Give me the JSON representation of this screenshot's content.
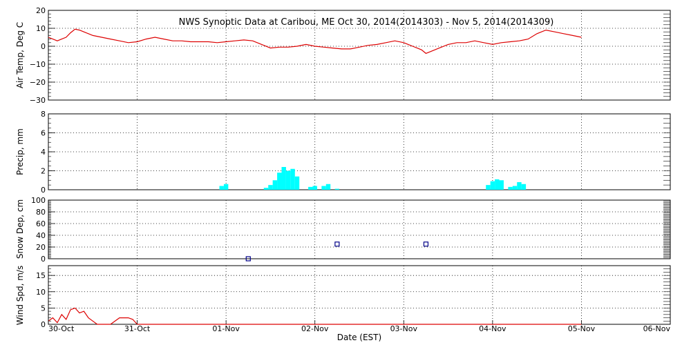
{
  "chart_data": [
    {
      "type": "line",
      "title": "NWS Synoptic Data at Caribou, ME   Oct 30, 2014(2014303) - Nov  5, 2014(2014309)",
      "ylabel": "Air Temp, Deg C",
      "ylim": [
        -30,
        20
      ],
      "yticks": [
        "20",
        "10",
        "0",
        "−10",
        "−20",
        "−30"
      ],
      "grid": true,
      "series": [
        {
          "color": "#dd0000",
          "x": [
            0,
            0.05,
            0.1,
            0.15,
            0.2,
            0.25,
            0.3,
            0.35,
            0.4,
            0.45,
            0.5,
            0.6,
            0.7,
            0.8,
            0.9,
            1.0,
            1.1,
            1.2,
            1.3,
            1.4,
            1.5,
            1.6,
            1.7,
            1.8,
            1.9,
            2.0,
            2.1,
            2.2,
            2.3,
            2.4,
            2.5,
            2.6,
            2.7,
            2.8,
            2.9,
            3.0,
            3.1,
            3.2,
            3.3,
            3.4,
            3.5,
            3.6,
            3.7,
            3.8,
            3.9,
            4.0,
            4.05,
            4.1,
            4.15,
            4.2,
            4.25,
            4.3,
            4.4,
            4.5,
            4.6,
            4.7,
            4.8,
            4.9,
            5.0,
            5.1,
            5.2,
            5.3,
            5.4,
            5.5,
            5.6,
            5.7,
            5.8,
            5.9,
            6.0
          ],
          "values": [
            5,
            4,
            3,
            4,
            5,
            7.5,
            9.5,
            9,
            8,
            7,
            6,
            5,
            4,
            3,
            2,
            2.5,
            4,
            5,
            4,
            3,
            3,
            2.5,
            2.5,
            2.5,
            2,
            2.5,
            3,
            3.5,
            3,
            1,
            -1,
            -0.5,
            -0.5,
            0,
            1,
            0,
            -0.5,
            -1,
            -1.5,
            -1.5,
            -0.5,
            0.5,
            1,
            2,
            3,
            2,
            1,
            0,
            -1,
            -2,
            -4,
            -3,
            -1,
            1,
            2,
            2,
            3,
            2,
            1,
            2,
            2.5,
            3,
            4,
            7,
            9,
            8,
            7,
            6,
            5
          ]
        }
      ]
    },
    {
      "type": "bar",
      "ylabel": "Precip, mm",
      "ylim": [
        0,
        8
      ],
      "yticks": [
        "8",
        "6",
        "4",
        "2",
        "0"
      ],
      "grid": true,
      "series": [
        {
          "color": "#00ffff",
          "x": [
            1.95,
            2.0,
            2.45,
            2.5,
            2.55,
            2.6,
            2.65,
            2.7,
            2.75,
            2.8,
            2.95,
            3.0,
            3.1,
            3.15,
            3.25,
            4.95,
            5.0,
            5.05,
            5.1,
            5.2,
            5.25,
            5.3,
            5.35
          ],
          "values": [
            0.4,
            0.6,
            0.2,
            0.5,
            1.0,
            1.8,
            2.4,
            2.0,
            2.2,
            1.4,
            0.3,
            0.4,
            0.4,
            0.6,
            0.1,
            0.5,
            0.9,
            1.1,
            1.0,
            0.3,
            0.4,
            0.8,
            0.6
          ]
        }
      ]
    },
    {
      "type": "scatter",
      "ylabel": "Snow Dep, cm",
      "ylim": [
        0,
        100
      ],
      "yticks": [
        "100",
        "80",
        "60",
        "40",
        "20",
        "0"
      ],
      "grid": true,
      "series": [
        {
          "color": "#000088",
          "x": [
            2.25,
            3.25,
            4.25
          ],
          "values": [
            0,
            25,
            25
          ]
        }
      ]
    },
    {
      "type": "line",
      "ylabel": "Wind Spd, m/s",
      "ylim": [
        0,
        18
      ],
      "yticks": [
        "15",
        "10",
        "5",
        "0"
      ],
      "grid": true,
      "xlabel": "Date (EST)",
      "xticks": [
        "30-Oct",
        "31-Oct",
        "01-Nov",
        "02-Nov",
        "03-Nov",
        "04-Nov",
        "05-Nov",
        "06-Nov"
      ],
      "series": [
        {
          "color": "#dd0000",
          "x": [
            0,
            0.05,
            0.1,
            0.15,
            0.2,
            0.25,
            0.3,
            0.35,
            0.4,
            0.45,
            0.5,
            0.55,
            0.6,
            0.65,
            0.7,
            0.8,
            0.9,
            0.95,
            1.0,
            1.05,
            1.1,
            1.15,
            1.2,
            1.25,
            1.3,
            1.35,
            1.4,
            1.45,
            1.5,
            1.55,
            1.6,
            1.65,
            1.7,
            1.75,
            1.8,
            1.85,
            1.9,
            1.95,
            2.0,
            2.05,
            2.1,
            2.15,
            2.2,
            2.25,
            2.3,
            2.35,
            2.4,
            2.45,
            2.5,
            2.55,
            2.6,
            2.65,
            2.7,
            2.75,
            2.8,
            2.85,
            2.9,
            2.95,
            3.0,
            3.05,
            3.1,
            3.15,
            3.2,
            3.25,
            3.3,
            3.35,
            3.4,
            3.45,
            3.5,
            3.55,
            3.6,
            3.65,
            3.7,
            3.75,
            3.8,
            3.85,
            3.9,
            3.95,
            4.0,
            4.05,
            4.1,
            4.15,
            4.2,
            4.25,
            4.3,
            4.35,
            4.4,
            4.45,
            4.5,
            4.55,
            4.6,
            4.65,
            4.7,
            4.75,
            4.8,
            4.85,
            4.9,
            4.95,
            5.0,
            5.05,
            5.1,
            5.15,
            5.2,
            5.25,
            5.3,
            5.35,
            5.4,
            5.45,
            5.5,
            5.55,
            5.6,
            5.65,
            5.7,
            5.75,
            5.8,
            5.85,
            5.9,
            5.95,
            6.0
          ],
          "values": [
            1,
            2,
            0.5,
            3,
            1.5,
            4.5,
            5,
            3.5,
            4,
            2,
            1,
            0,
            0,
            0,
            0,
            2,
            2,
            1.5,
            0,
            0,
            0,
            0,
            0,
            0,
            0,
            0,
            0,
            0,
            0,
            0,
            0,
            0,
            0,
            0,
            0,
            0,
            0,
            0,
            0,
            0,
            0,
            0,
            0,
            0,
            0,
            0,
            0,
            0,
            0,
            0,
            0,
            0,
            0,
            0,
            0,
            0,
            0,
            0,
            0,
            0,
            0,
            0,
            0,
            0,
            0,
            0,
            0,
            0,
            0,
            0,
            0,
            0,
            0,
            0,
            0,
            0,
            0,
            0,
            0,
            0,
            0,
            0,
            0,
            0,
            0,
            0,
            0,
            0,
            0,
            0,
            0,
            0,
            0,
            0,
            0,
            0,
            0,
            0,
            0,
            0,
            0,
            0,
            0,
            0,
            0,
            0,
            0,
            0,
            0,
            0,
            0,
            0,
            0,
            0,
            0,
            0,
            0,
            0,
            0
          ]
        }
      ]
    }
  ]
}
